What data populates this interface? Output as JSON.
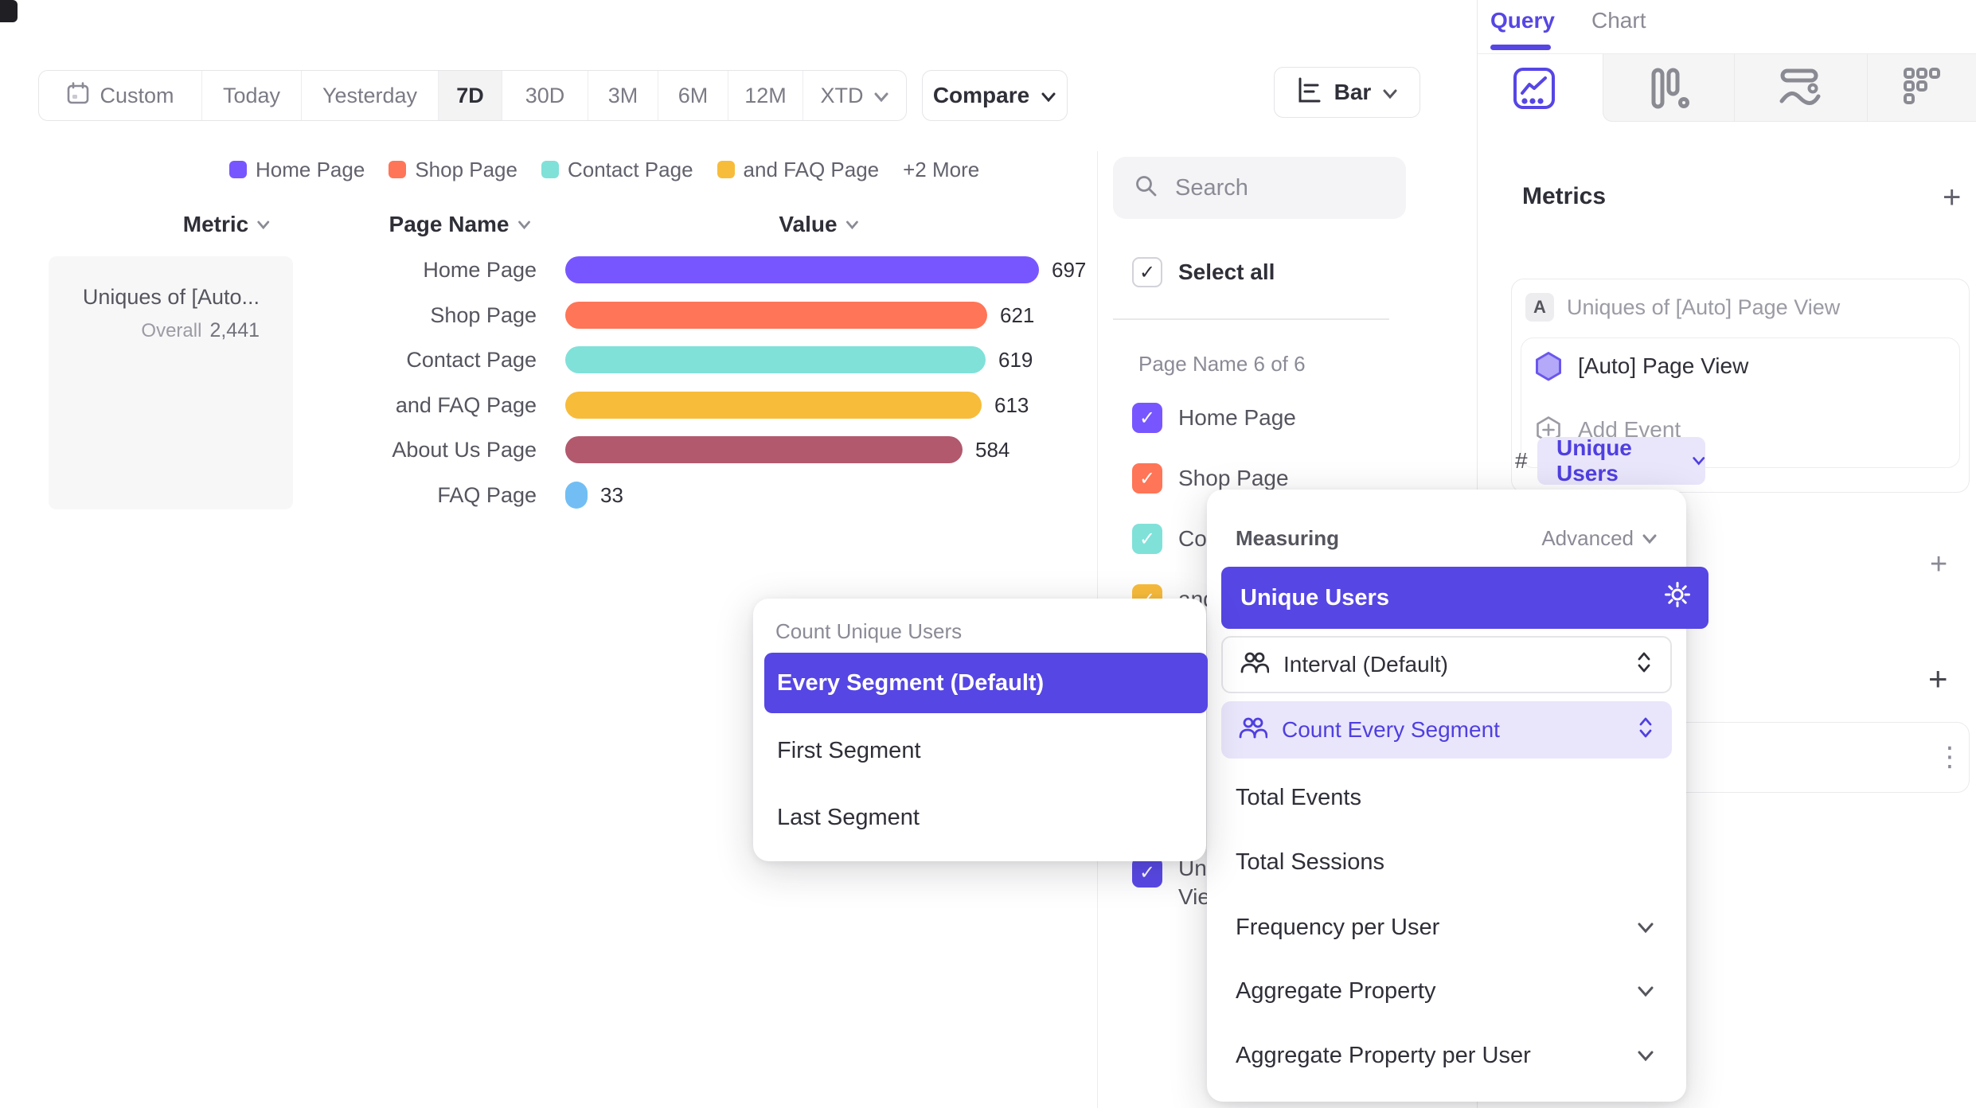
{
  "colors": {
    "accent": "#5646e4",
    "accent_text": "#4f3fe0",
    "lavender": "#e9e6fb",
    "purple": "#7856FF",
    "coral": "#FF7557",
    "teal": "#80E1D9",
    "amber": "#F8BC3B",
    "maroon": "#B2596E",
    "blue": "#72BEF4",
    "indigo_check": "#5a49e8"
  },
  "icons": {
    "plus": "+",
    "check": "✓",
    "more_vertical": "⋮",
    "hash": "#"
  },
  "toolbar": {
    "ranges": [
      "Custom",
      "Today",
      "Yesterday",
      "7D",
      "30D",
      "3M",
      "6M",
      "12M",
      "XTD"
    ],
    "selected_range": "7D",
    "compare_label": "Compare",
    "chart_type_label": "Bar"
  },
  "legend": {
    "items": [
      {
        "label": "Home Page",
        "color": "#7856FF"
      },
      {
        "label": "Shop Page",
        "color": "#FF7557"
      },
      {
        "label": "Contact Page",
        "color": "#80E1D9"
      },
      {
        "label": "and FAQ Page",
        "color": "#F8BC3B"
      }
    ],
    "more_label": "+2 More"
  },
  "table": {
    "headers": [
      "Metric",
      "Page Name",
      "Value"
    ]
  },
  "metric_card": {
    "title": "Uniques of [Auto...",
    "overall_label": "Overall",
    "overall_value": "2,441"
  },
  "chart_data": {
    "type": "bar",
    "orientation": "horizontal",
    "title": "Uniques of [Auto] Page View",
    "categories": [
      "Home Page",
      "Shop Page",
      "Contact Page",
      "and FAQ Page",
      "About Us Page",
      "FAQ Page"
    ],
    "values": [
      697,
      621,
      619,
      613,
      584,
      33
    ],
    "colors": [
      "#7856FF",
      "#FF7557",
      "#80E1D9",
      "#F8BC3B",
      "#B2596E",
      "#72BEF4"
    ],
    "overall_total": 2441,
    "xlim": [
      0,
      720
    ],
    "value_labels_shown": true,
    "legend_position": "top"
  },
  "filter_panel": {
    "search_placeholder": "Search",
    "select_all_label": "Select all",
    "group_label": "Page Name 6 of 6",
    "items": [
      {
        "label": "Home Page",
        "color": "#7856FF",
        "checked": true
      },
      {
        "label": "Shop Page",
        "color": "#FF7557",
        "checked": true
      },
      {
        "label": "Contact Page",
        "color": "#80E1D9",
        "checked": true
      },
      {
        "label": "and FAQ Page",
        "color": "#F8BC3B",
        "checked": true
      }
    ],
    "partial_item": {
      "line1": "Uni",
      "line2": "Vie",
      "color": "#5a49e8",
      "checked": true
    }
  },
  "query_panel": {
    "tabs": {
      "query": "Query",
      "chart": "Chart"
    },
    "active_tab": "Query",
    "metrics_title": "Metrics",
    "metric": {
      "badge": "A",
      "title": "Uniques of [Auto] Page View",
      "event_name": "[Auto] Page View",
      "add_event_label": "Add Event",
      "counting_prefix": "#",
      "counting_label": "Unique Users"
    }
  },
  "segment_popup": {
    "title": "Count Unique Users",
    "selected_option": "Every Segment (Default)",
    "options": [
      "Every Segment (Default)",
      "First Segment",
      "Last Segment"
    ]
  },
  "measuring_popup": {
    "title": "Measuring",
    "advanced_label": "Advanced",
    "selected_measure": "Unique Users",
    "interval_label": "Interval (Default)",
    "count_mode_label": "Count Every Segment",
    "options": [
      "Total Events",
      "Total Sessions",
      "Frequency per User",
      "Aggregate Property",
      "Aggregate Property per User"
    ]
  }
}
